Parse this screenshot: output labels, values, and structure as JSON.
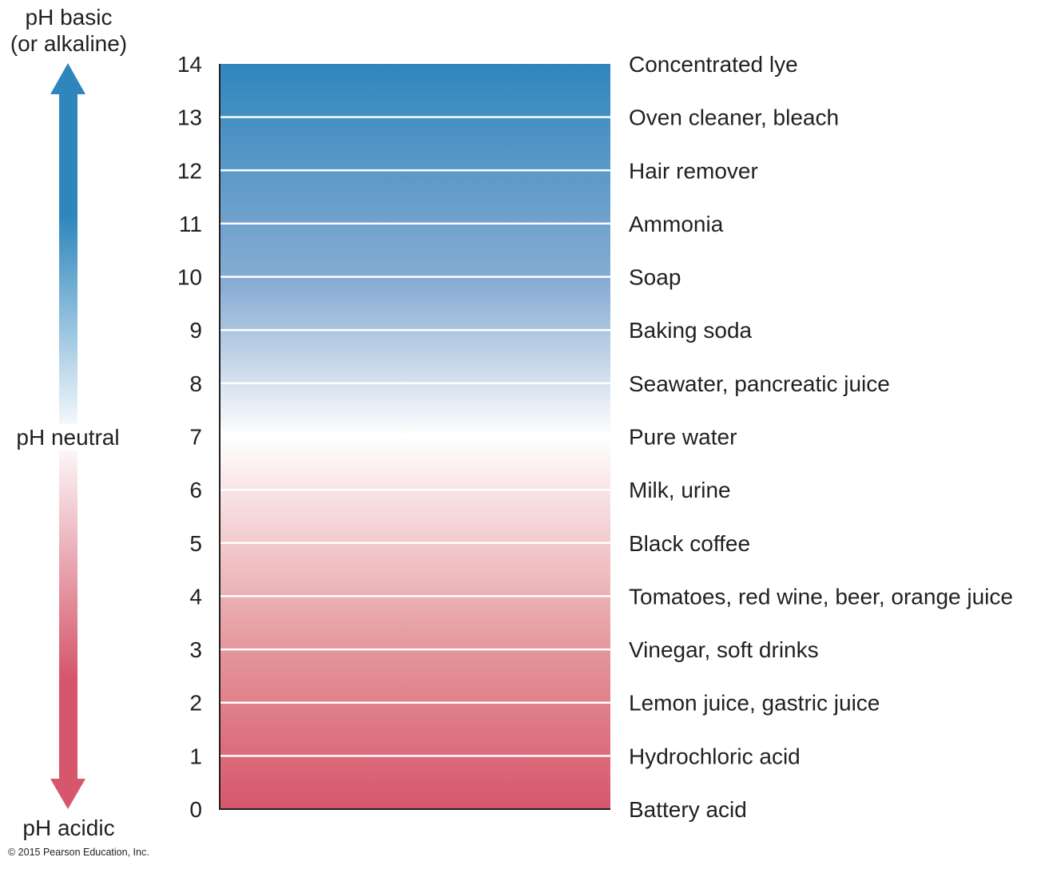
{
  "chart_data": {
    "type": "table",
    "title": "",
    "axis": {
      "label": "pH",
      "range": [
        0,
        14
      ],
      "ticks": [
        0,
        1,
        2,
        3,
        4,
        5,
        6,
        7,
        8,
        9,
        10,
        11,
        12,
        13,
        14
      ]
    },
    "arrow_labels": {
      "top_line1": "pH basic",
      "top_line2": "(or alkaline)",
      "middle": "pH neutral",
      "bottom": "pH acidic"
    },
    "examples": [
      {
        "ph": 14,
        "label": "Concentrated lye"
      },
      {
        "ph": 13,
        "label": "Oven cleaner, bleach"
      },
      {
        "ph": 12,
        "label": "Hair remover"
      },
      {
        "ph": 11,
        "label": "Ammonia"
      },
      {
        "ph": 10,
        "label": "Soap"
      },
      {
        "ph": 9,
        "label": "Baking soda"
      },
      {
        "ph": 8,
        "label": "Seawater, pancreatic juice"
      },
      {
        "ph": 7,
        "label": "Pure water"
      },
      {
        "ph": 6,
        "label": "Milk, urine"
      },
      {
        "ph": 5,
        "label": "Black coffee"
      },
      {
        "ph": 4,
        "label": "Tomatoes, red wine, beer, orange juice"
      },
      {
        "ph": 3,
        "label": "Vinegar, soft drinks"
      },
      {
        "ph": 2,
        "label": "Lemon juice, gastric juice"
      },
      {
        "ph": 1,
        "label": "Hydrochloric acid"
      },
      {
        "ph": 0,
        "label": "Battery acid"
      }
    ],
    "colors": {
      "basic": "#2f86bd",
      "neutral": "#ffffff",
      "acidic": "#d6566b",
      "axis": "#231f20"
    }
  },
  "copyright": "© 2015 Pearson Education, Inc."
}
